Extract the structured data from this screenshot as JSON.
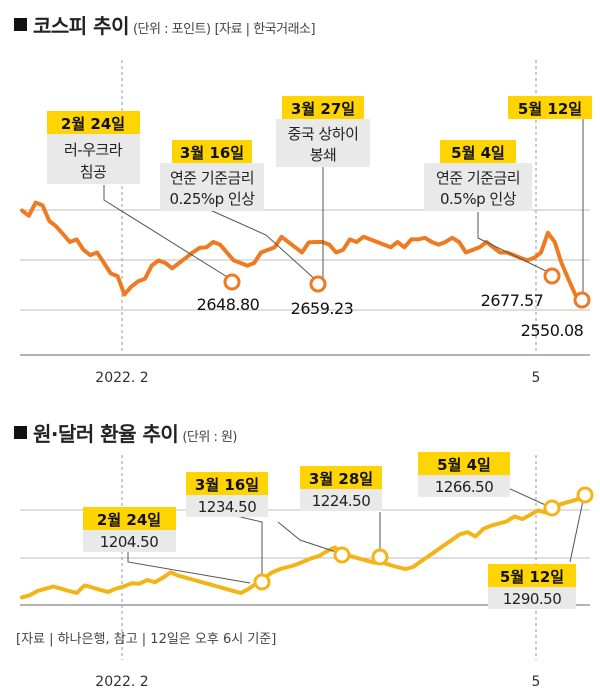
{
  "kospi": {
    "title": "코스피 추이",
    "unit": "(단위 : 포인트)",
    "source": "[자료 | 한국거래소]",
    "x_labels": [
      "2022. 2",
      "5"
    ],
    "annotations": [
      {
        "date": "2월 24일",
        "desc": [
          "러-우크라",
          "침공"
        ],
        "value": "2648.80"
      },
      {
        "date": "3월 16일",
        "desc": [
          "연준 기준금리",
          "0.25%p 인상"
        ],
        "value": ""
      },
      {
        "date": "3월 27일",
        "desc": [
          "중국 상하이",
          "봉쇄"
        ],
        "value": "2659.23"
      },
      {
        "date": "5월 4일",
        "desc": [
          "연준 기준금리",
          "0.5%p 인상"
        ],
        "value": "2677.57"
      },
      {
        "date": "5월 12일",
        "desc": [],
        "value": "2550.08"
      }
    ]
  },
  "fx": {
    "title": "원·달러 환율 추이",
    "unit": "(단위 : 원)",
    "x_labels": [
      "2022. 2",
      "5"
    ],
    "annotations": [
      {
        "date": "2월 24일",
        "value": "1204.50"
      },
      {
        "date": "3월 16일",
        "value": "1234.50"
      },
      {
        "date": "3월 28일",
        "value": "1224.50"
      },
      {
        "date": "5월 4일",
        "value": "1266.50"
      },
      {
        "date": "5월 12일",
        "value": "1290.50"
      }
    ],
    "note": "[자료 | 하나은행, 참고 | 12일은 오후 6시 기준]"
  },
  "colors": {
    "kospi_line": "#ee7a22",
    "fx_line": "#f3b417",
    "label_bg": "#ffd400",
    "desc_bg": "#e9e9e9"
  },
  "chart_data": [
    {
      "type": "line",
      "title": "코스피 추이",
      "unit": "포인트",
      "xlabel": "",
      "ylabel": "",
      "x_ticks": [
        "2022. 2",
        "5"
      ],
      "series": [
        {
          "values": [
            2720,
            2710,
            2735,
            2730,
            2700,
            2690,
            2675,
            2660,
            2665,
            2645,
            2635,
            2640,
            2620,
            2600,
            2595,
            2560,
            2575,
            2585,
            2590,
            2615,
            2625,
            2620,
            2610,
            2620,
            2630,
            2640,
            2648.8,
            2650,
            2660,
            2655,
            2640,
            2625,
            2620,
            2615,
            2620,
            2640,
            2645,
            2650,
            2670,
            2660,
            2650,
            2640,
            2659.23,
            2660,
            2660,
            2655,
            2640,
            2645,
            2665,
            2660,
            2670,
            2665,
            2660,
            2655,
            2650,
            2660,
            2650,
            2665,
            2665,
            2668,
            2660,
            2655,
            2660,
            2668,
            2660,
            2640,
            2645,
            2650,
            2660,
            2650,
            2640,
            2640,
            2635,
            2630,
            2625,
            2630,
            2640,
            2677.57,
            2660,
            2620,
            2590,
            2560,
            2550.08
          ]
        }
      ],
      "annotations": [
        {
          "date": "2월 24일",
          "value": 2648.8
        },
        {
          "date": "3월 27일",
          "value": 2659.23
        },
        {
          "date": "5월 4일",
          "value": 2677.57
        },
        {
          "date": "5월 12일",
          "value": 2550.08
        }
      ],
      "grid": true
    },
    {
      "type": "line",
      "title": "원·달러 환율 추이",
      "unit": "원",
      "xlabel": "",
      "ylabel": "",
      "x_ticks": [
        "2022. 2",
        "5"
      ],
      "series": [
        {
          "values": [
            1192,
            1194,
            1198,
            1200,
            1202,
            1200,
            1198,
            1196,
            1203,
            1201,
            1199,
            1197,
            1200,
            1202,
            1205,
            1204.5,
            1208,
            1206,
            1210,
            1215,
            1212,
            1210,
            1208,
            1206,
            1204,
            1202,
            1200,
            1198,
            1196,
            1200,
            1205,
            1210,
            1215,
            1218,
            1220,
            1222,
            1225,
            1228,
            1230,
            1234.5,
            1238,
            1232,
            1230,
            1228,
            1226,
            1224,
            1224.5,
            1222,
            1220,
            1218,
            1220,
            1225,
            1230,
            1235,
            1240,
            1245,
            1250,
            1252,
            1248,
            1255,
            1258,
            1260,
            1262,
            1266.5,
            1264,
            1268,
            1272,
            1270,
            1275,
            1278,
            1280,
            1282,
            1290.5
          ]
        }
      ],
      "annotations": [
        {
          "date": "2월 24일",
          "value": 1204.5
        },
        {
          "date": "3월 16일",
          "value": 1234.5
        },
        {
          "date": "3월 28일",
          "value": 1224.5
        },
        {
          "date": "5월 4일",
          "value": 1266.5
        },
        {
          "date": "5월 12일",
          "value": 1290.5
        }
      ],
      "grid": true
    }
  ]
}
